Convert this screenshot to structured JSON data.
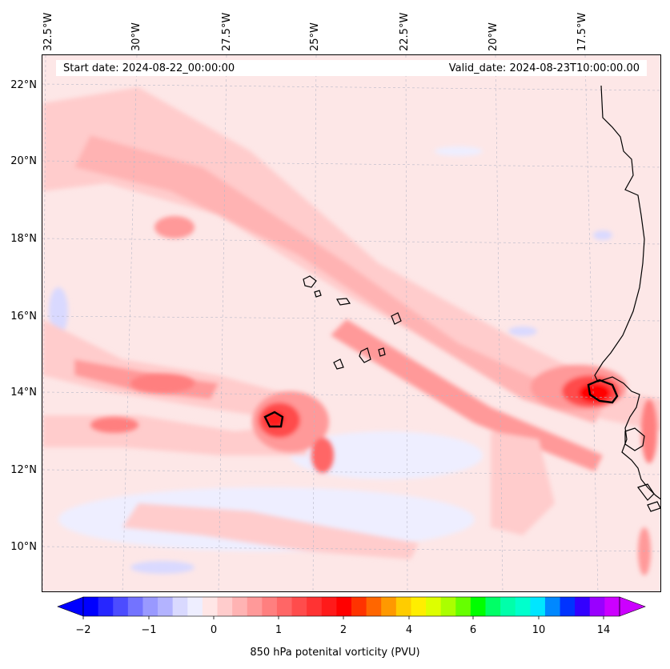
{
  "header": {
    "start_date": "Start date: 2024-08-22_00:00:00",
    "valid_date": "Valid_date: 2024-08-23T10:00:00.00"
  },
  "lon_labels": [
    "32.5°W",
    "30°W",
    "27.5°W",
    "25°W",
    "22.5°W",
    "20°W",
    "17.5°W"
  ],
  "lat_labels": [
    "22°N",
    "20°N",
    "18°N",
    "16°N",
    "14°N",
    "12°N",
    "10°N"
  ],
  "colorbar": {
    "title": "850 hPa potenital vorticity (PVU)",
    "tick_labels": [
      "−2",
      "−1",
      "0",
      "1",
      "2",
      "4",
      "6",
      "10",
      "14"
    ],
    "colors": [
      "#0000ff",
      "#2626ff",
      "#4c4cff",
      "#7373ff",
      "#9999ff",
      "#b3b3ff",
      "#d9d9ff",
      "#eeeeff",
      "#ffe6e6",
      "#ffcccc",
      "#ffb3b3",
      "#ff9999",
      "#ff7f7f",
      "#ff6666",
      "#ff4c4c",
      "#ff3333",
      "#ff1a1a",
      "#ff0000",
      "#ff3300",
      "#ff6600",
      "#ff9900",
      "#ffcc00",
      "#ffee00",
      "#ddff00",
      "#aaff00",
      "#66ff00",
      "#00ff00",
      "#00ff66",
      "#00ffaa",
      "#00ffcc",
      "#00e6ff",
      "#0088ff",
      "#0033ff",
      "#3300ff",
      "#9900ff",
      "#cc00ff"
    ]
  },
  "map": {
    "background_color": "#fde7e7",
    "coastline_color": "#000000"
  }
}
